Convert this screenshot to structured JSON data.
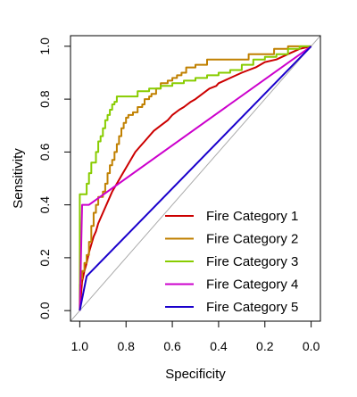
{
  "chart_data": {
    "type": "line",
    "title": "",
    "xlabel": "Specificity",
    "ylabel": "Sensitivity",
    "xlim": [
      1.04,
      -0.04
    ],
    "ylim": [
      -0.04,
      1.04
    ],
    "x_reversed": true,
    "xticks": [
      1.0,
      0.8,
      0.6,
      0.4,
      0.2,
      0.0
    ],
    "xtick_labels": [
      "1.0",
      "0.8",
      "0.6",
      "0.4",
      "0.2",
      "0.0"
    ],
    "yticks": [
      0.0,
      0.2,
      0.4,
      0.6,
      0.8,
      1.0
    ],
    "ytick_labels": [
      "0.0",
      "0.2",
      "0.4",
      "0.6",
      "0.8",
      "1.0"
    ],
    "grid": false,
    "legend_position": "bottom-right",
    "reference_line": {
      "color": "#aaaaaa",
      "points": [
        [
          1.04,
          -0.04
        ],
        [
          -0.04,
          1.04
        ]
      ]
    },
    "series": [
      {
        "name": "Fire Category 1",
        "color": "#cc0000",
        "step": false,
        "x": [
          1.0,
          0.99,
          0.98,
          0.97,
          0.96,
          0.95,
          0.94,
          0.93,
          0.92,
          0.9,
          0.88,
          0.86,
          0.84,
          0.82,
          0.8,
          0.78,
          0.76,
          0.74,
          0.72,
          0.7,
          0.68,
          0.65,
          0.62,
          0.6,
          0.57,
          0.55,
          0.52,
          0.5,
          0.47,
          0.44,
          0.41,
          0.4,
          0.35,
          0.3,
          0.27,
          0.24,
          0.2,
          0.15,
          0.1,
          0.05,
          0.0
        ],
        "y": [
          0.0,
          0.11,
          0.15,
          0.18,
          0.22,
          0.25,
          0.28,
          0.3,
          0.33,
          0.37,
          0.41,
          0.45,
          0.48,
          0.51,
          0.54,
          0.57,
          0.6,
          0.62,
          0.64,
          0.66,
          0.68,
          0.7,
          0.72,
          0.74,
          0.76,
          0.77,
          0.79,
          0.8,
          0.82,
          0.84,
          0.85,
          0.86,
          0.88,
          0.9,
          0.91,
          0.92,
          0.94,
          0.95,
          0.97,
          0.99,
          1.0
        ]
      },
      {
        "name": "Fire Category 2",
        "color": "#c08000",
        "step": true,
        "x": [
          1.0,
          0.995,
          0.99,
          0.98,
          0.97,
          0.96,
          0.95,
          0.94,
          0.93,
          0.92,
          0.9,
          0.89,
          0.88,
          0.87,
          0.86,
          0.85,
          0.84,
          0.83,
          0.82,
          0.81,
          0.8,
          0.79,
          0.77,
          0.75,
          0.73,
          0.72,
          0.7,
          0.69,
          0.67,
          0.65,
          0.62,
          0.6,
          0.58,
          0.56,
          0.54,
          0.5,
          0.45,
          0.4,
          0.35,
          0.3,
          0.27,
          0.2,
          0.16,
          0.12,
          0.1,
          0.05,
          0.0
        ],
        "y": [
          0.0,
          0.1,
          0.12,
          0.15,
          0.18,
          0.21,
          0.26,
          0.32,
          0.37,
          0.4,
          0.43,
          0.45,
          0.48,
          0.52,
          0.55,
          0.57,
          0.6,
          0.63,
          0.66,
          0.69,
          0.71,
          0.73,
          0.74,
          0.75,
          0.77,
          0.78,
          0.8,
          0.81,
          0.82,
          0.84,
          0.86,
          0.87,
          0.88,
          0.89,
          0.9,
          0.92,
          0.93,
          0.95,
          0.95,
          0.95,
          0.95,
          0.97,
          0.97,
          0.99,
          0.99,
          1.0,
          1.0
        ]
      },
      {
        "name": "Fire Category 3",
        "color": "#88cc00",
        "step": true,
        "x": [
          1.0,
          0.99,
          0.98,
          0.97,
          0.96,
          0.95,
          0.94,
          0.93,
          0.92,
          0.91,
          0.9,
          0.89,
          0.88,
          0.87,
          0.86,
          0.85,
          0.84,
          0.83,
          0.82,
          0.75,
          0.7,
          0.65,
          0.6,
          0.55,
          0.5,
          0.45,
          0.4,
          0.35,
          0.3,
          0.25,
          0.2,
          0.15,
          0.1,
          0.05,
          0.0
        ],
        "y": [
          0.0,
          0.44,
          0.44,
          0.44,
          0.48,
          0.52,
          0.56,
          0.56,
          0.6,
          0.64,
          0.66,
          0.69,
          0.72,
          0.74,
          0.76,
          0.78,
          0.79,
          0.81,
          0.81,
          0.81,
          0.83,
          0.84,
          0.85,
          0.86,
          0.87,
          0.88,
          0.89,
          0.9,
          0.91,
          0.93,
          0.95,
          0.96,
          0.97,
          0.99,
          1.0
        ]
      },
      {
        "name": "Fire Category 4",
        "color": "#cc00cc",
        "step": false,
        "x": [
          1.0,
          0.99,
          0.96,
          0.0
        ],
        "y": [
          0.0,
          0.4,
          0.4,
          1.0
        ]
      },
      {
        "name": "Fire Category 5",
        "color": "#1a00cc",
        "step": false,
        "x": [
          1.0,
          0.97,
          0.0
        ],
        "y": [
          0.0,
          0.13,
          1.0
        ]
      }
    ]
  }
}
